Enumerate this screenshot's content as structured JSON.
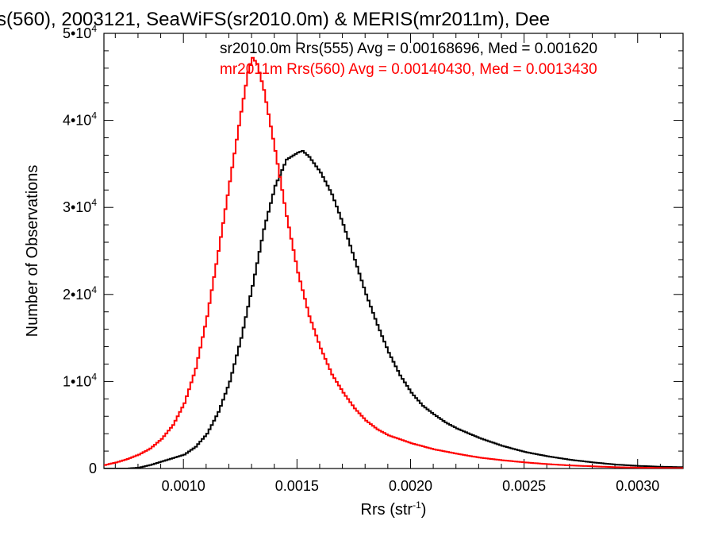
{
  "chart_data": {
    "type": "histogram",
    "title": "s(560), 2003121, SeaWiFS(sr2010.0m) & MERIS(mr2011m), Dee",
    "xlabel": "Rrs (str",
    "xlabel_sup": "-1",
    "xlabel_close": ")",
    "ylabel": "Number of Observations",
    "xlim": [
      0.00065,
      0.0032
    ],
    "ylim": [
      0,
      50000
    ],
    "x_ticks": [
      {
        "value": 0.001,
        "label": "0.0010"
      },
      {
        "value": 0.0015,
        "label": "0.0015"
      },
      {
        "value": 0.002,
        "label": "0.0020"
      },
      {
        "value": 0.0025,
        "label": "0.0025"
      },
      {
        "value": 0.003,
        "label": "0.0030"
      }
    ],
    "y_ticks": [
      {
        "value": 0,
        "label": "0",
        "exp": ""
      },
      {
        "value": 10000,
        "label": "1•10",
        "exp": "4"
      },
      {
        "value": 20000,
        "label": "2•10",
        "exp": "4"
      },
      {
        "value": 30000,
        "label": "3•10",
        "exp": "4"
      },
      {
        "value": 40000,
        "label": "4•10",
        "exp": "4"
      },
      {
        "value": 50000,
        "label": "5•10",
        "exp": "4"
      }
    ],
    "annotations": [
      {
        "text": "sr2010.0m Rrs(555) Avg = 0.00168696, Med = 0.001620",
        "color": "#000000"
      },
      {
        "text": "mr2011m Rrs(560) Avg = 0.00140430, Med = 0.0013430",
        "color": "#ff0000"
      }
    ],
    "series": [
      {
        "color": "#000000",
        "x": [
          0.00065,
          0.0007,
          0.00075,
          0.0008,
          0.00085,
          0.0009,
          0.00095,
          0.001,
          0.00105,
          0.0011,
          0.00115,
          0.0012,
          0.00125,
          0.0013,
          0.00135,
          0.0014,
          0.00145,
          0.0015,
          0.00152,
          0.00155,
          0.0016,
          0.00165,
          0.0017,
          0.00175,
          0.0018,
          0.00185,
          0.0019,
          0.00195,
          0.002,
          0.00205,
          0.0021,
          0.00215,
          0.0022,
          0.0023,
          0.0024,
          0.0025,
          0.0026,
          0.0027,
          0.0028,
          0.0029,
          0.003,
          0.0031,
          0.0032
        ],
        "values": [
          0,
          0,
          0,
          100,
          400,
          800,
          1200,
          1600,
          2500,
          4000,
          6500,
          10000,
          15000,
          21000,
          27500,
          32500,
          35500,
          36300,
          36500,
          35800,
          34000,
          31500,
          28000,
          24000,
          20000,
          16500,
          13300,
          10700,
          8700,
          7200,
          6200,
          5300,
          4600,
          3500,
          2600,
          1900,
          1400,
          1000,
          700,
          450,
          300,
          200,
          150
        ]
      },
      {
        "color": "#ff0000",
        "x": [
          0.00065,
          0.0007,
          0.00075,
          0.0008,
          0.00085,
          0.0009,
          0.00095,
          0.001,
          0.00105,
          0.0011,
          0.00115,
          0.0012,
          0.00125,
          0.00128,
          0.0013,
          0.00132,
          0.00135,
          0.0014,
          0.00145,
          0.0015,
          0.00155,
          0.0016,
          0.00165,
          0.0017,
          0.00175,
          0.0018,
          0.00185,
          0.0019,
          0.002,
          0.0021,
          0.0022,
          0.0023,
          0.0024,
          0.0025,
          0.0026,
          0.0027,
          0.0028,
          0.0029,
          0.003,
          0.0031,
          0.0032
        ],
        "values": [
          400,
          700,
          1100,
          1600,
          2300,
          3400,
          5000,
          7500,
          11500,
          17500,
          25000,
          33000,
          41000,
          45500,
          47200,
          46500,
          43500,
          36500,
          29000,
          22500,
          17500,
          13800,
          10800,
          8700,
          6900,
          5500,
          4500,
          3800,
          2900,
          2200,
          1700,
          1250,
          950,
          700,
          500,
          350,
          250,
          150,
          100,
          60,
          40
        ]
      }
    ]
  }
}
